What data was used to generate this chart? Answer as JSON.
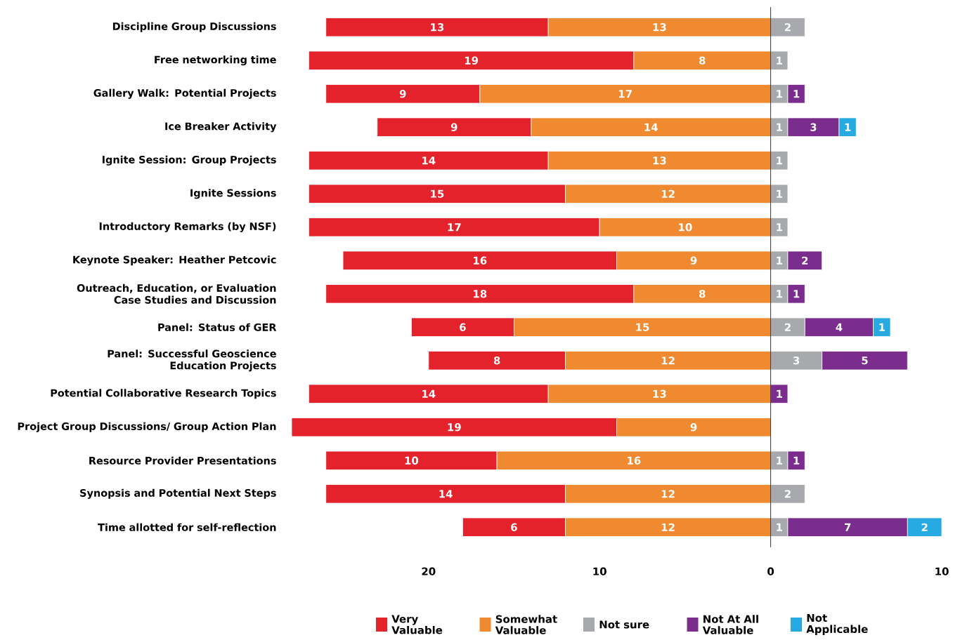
{
  "chart_data": {
    "type": "bar",
    "orientation": "horizontal",
    "data_labels": true,
    "categories": [
      "Discipline Group Discussions",
      "Free networking time",
      "Gallery Walk: Potential Projects",
      "Ice Breaker Activity",
      "Ignite Session: Group Projects",
      "Ignite Sessions",
      "Introductory Remarks (by NSF)",
      "Keynote Speaker: Heather Petcovic",
      "Outreach, Education, or Evaluation Case Studies and Discussion",
      "Panel: Status of GER",
      "Panel: Successful Geoscience Education Projects",
      "Potential Collaborative Research Topics",
      "Project Group Discussions/ Group Action Plan",
      "Resource Provider Presentations",
      "Synopsis and Potential Next Steps",
      "Time allotted for self-reflection"
    ],
    "series": [
      {
        "name": "Very Valuable",
        "color": "#e3222b",
        "values": [
          13,
          19,
          9,
          9,
          14,
          15,
          17,
          16,
          18,
          6,
          8,
          14,
          19,
          10,
          14,
          6
        ],
        "base": [
          -26,
          -27,
          -26,
          -23,
          -27,
          -27,
          -27,
          -25,
          -26,
          -21,
          -20,
          -27,
          -28,
          -26,
          -26,
          -18
        ]
      },
      {
        "name": "Somewhat Valuable",
        "color": "#f08a30",
        "values": [
          13,
          8,
          17,
          14,
          13,
          12,
          10,
          9,
          8,
          15,
          12,
          13,
          9,
          16,
          12,
          12
        ],
        "base": [
          -13,
          -8,
          -17,
          -14,
          -13,
          -12,
          -10,
          -9,
          -8,
          -15,
          -12,
          -13,
          -9,
          -16,
          -12,
          -12
        ]
      },
      {
        "name": "Not sure",
        "color": "#a7a9ac",
        "values": [
          2,
          1,
          1,
          1,
          1,
          1,
          1,
          1,
          1,
          2,
          3,
          null,
          null,
          1,
          2,
          1
        ],
        "base": [
          0,
          0,
          0,
          0,
          0,
          0,
          0,
          0,
          0,
          0,
          0,
          null,
          null,
          0,
          0,
          0
        ]
      },
      {
        "name": "Not At All Valuable",
        "color": "#7b2d8e",
        "values": [
          null,
          null,
          1,
          3,
          null,
          null,
          null,
          2,
          1,
          4,
          5,
          1,
          null,
          1,
          null,
          7
        ],
        "base": [
          null,
          null,
          1,
          1,
          null,
          null,
          null,
          1,
          1,
          2,
          3,
          0,
          null,
          1,
          null,
          1
        ]
      },
      {
        "name": "Not Applicable",
        "color": "#27aae1",
        "values": [
          null,
          null,
          null,
          1,
          null,
          null,
          null,
          null,
          null,
          1,
          null,
          null,
          null,
          null,
          null,
          2
        ],
        "base": [
          null,
          null,
          null,
          4,
          null,
          null,
          null,
          null,
          null,
          6,
          null,
          null,
          null,
          null,
          null,
          8
        ]
      }
    ],
    "xlim": [
      -28,
      10
    ],
    "xticks": [
      {
        "value": -20,
        "label": "20"
      },
      {
        "value": -10,
        "label": "10"
      },
      0,
      10
    ],
    "legend": "bottom"
  }
}
